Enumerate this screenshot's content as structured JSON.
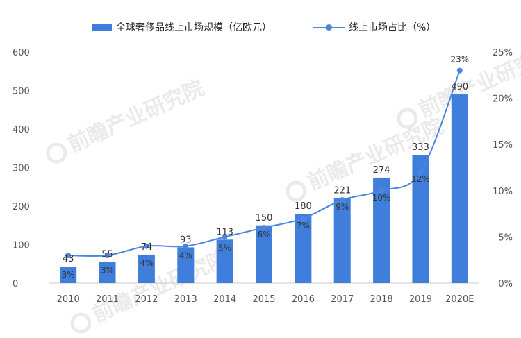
{
  "legend": {
    "bar_label": "全球奢侈品线上市场规模（亿欧元）",
    "line_label": "线上市场占比（%）"
  },
  "watermark": {
    "text": "前瞻产业研究院"
  },
  "colors": {
    "bar": "#3f7fdb",
    "line": "#4a86df",
    "axis_text": "#555555",
    "label_text": "#333333"
  },
  "chart_data": {
    "type": "bar",
    "categories": [
      "2010",
      "2011",
      "2012",
      "2013",
      "2014",
      "2015",
      "2016",
      "2017",
      "2018",
      "2019",
      "2020E"
    ],
    "series": [
      {
        "name": "全球奢侈品线上市场规模（亿欧元）",
        "type": "bar",
        "axis": "left",
        "values": [
          43,
          55,
          74,
          93,
          113,
          150,
          180,
          221,
          274,
          333,
          490
        ]
      },
      {
        "name": "线上市场占比（%）",
        "type": "line",
        "axis": "right",
        "values": [
          3,
          3,
          4,
          4,
          5,
          6,
          7,
          9,
          10,
          12,
          23
        ]
      }
    ],
    "y_left": {
      "min": 0,
      "max": 600,
      "ticks": [
        "0",
        "100",
        "200",
        "300",
        "400",
        "500",
        "600"
      ]
    },
    "y_right": {
      "min": 0,
      "max": 25,
      "ticks": [
        "0%",
        "5%",
        "10%",
        "15%",
        "20%",
        "25%"
      ]
    },
    "grid": false,
    "legend_position": "top"
  }
}
